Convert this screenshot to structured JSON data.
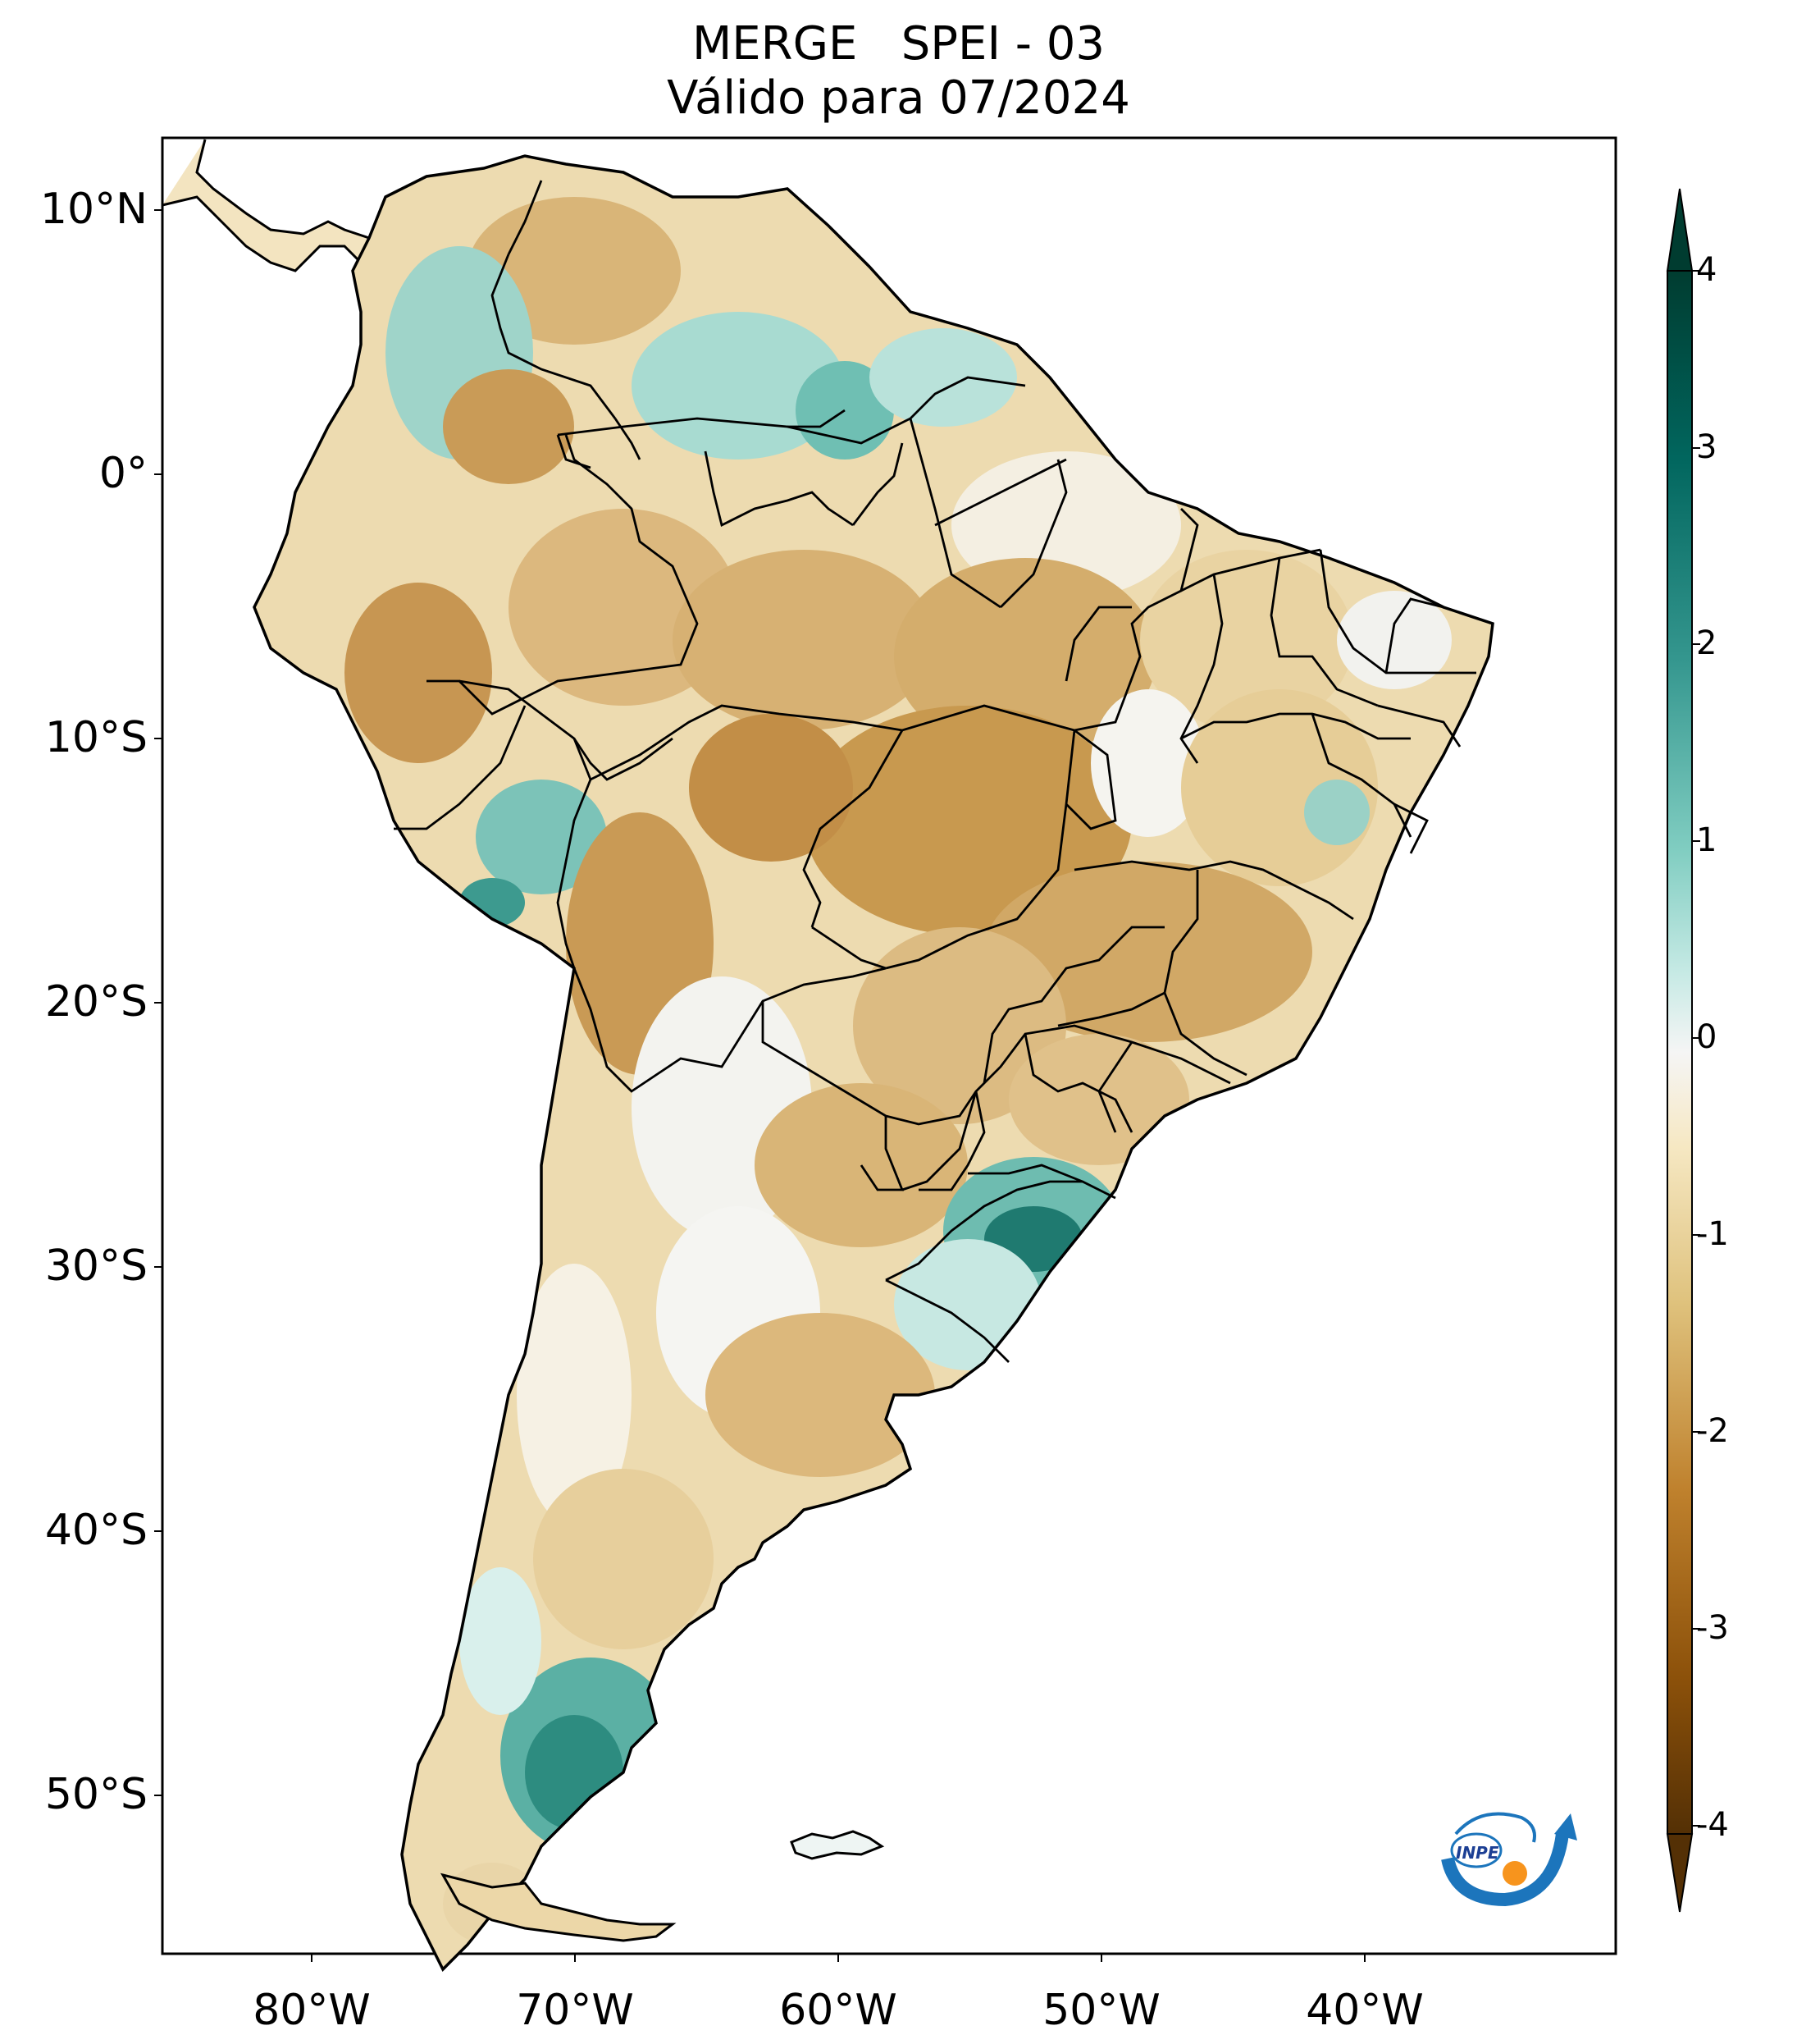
{
  "title": {
    "line1": "MERGE   SPEI - 03",
    "line2": "Válido para 07/2024"
  },
  "axes": {
    "lat_labels": [
      "10°N",
      "0°",
      "10°S",
      "20°S",
      "30°S",
      "40°S",
      "50°S"
    ],
    "lon_labels": [
      "80°W",
      "70°W",
      "60°W",
      "50°W",
      "40°W"
    ]
  },
  "colorbar": {
    "ticks": [
      "4",
      "3",
      "2",
      "1",
      "0",
      "-1",
      "-2",
      "-3",
      "-4"
    ],
    "colors": {
      "extreme_wet": "#003c30",
      "very_wet": "#01665e",
      "wet": "#35978f",
      "mild_wet": "#80cdc1",
      "light_wet": "#c7eae5",
      "neutral": "#f5f5f5",
      "light_dry": "#f6e8c3",
      "mild_dry": "#dfc27d",
      "dry": "#bf812d",
      "very_dry": "#8c510a",
      "extreme_dry": "#543005"
    }
  },
  "logo": {
    "text": "INPE"
  }
}
